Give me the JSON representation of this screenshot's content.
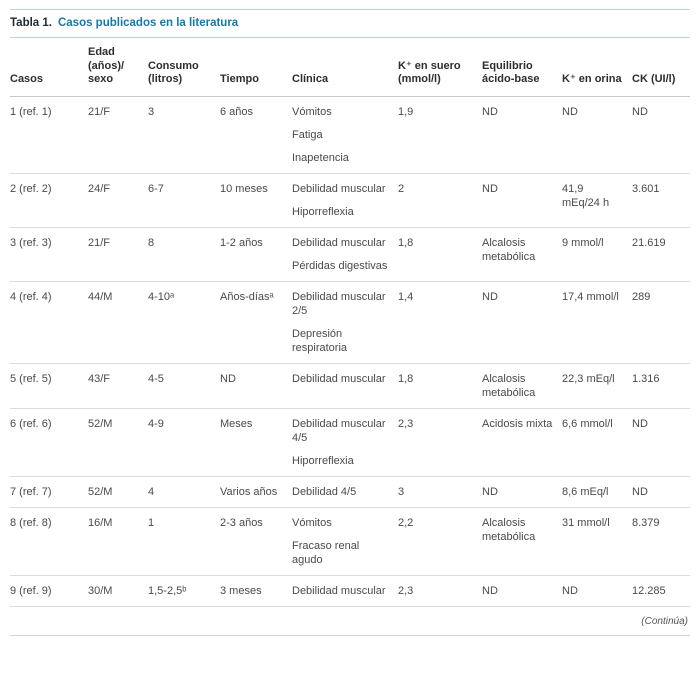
{
  "colors": {
    "accent_teal": "#1579a8",
    "rule_teal": "#b9d7e2",
    "divider_gray": "#dcdcdc",
    "header_text": "#2e2e2e",
    "body_text": "#4a4a4a"
  },
  "title": {
    "label": "Tabla 1.",
    "text": "Casos publicados en la literatura"
  },
  "table": {
    "columns": [
      "Casos",
      "Edad\n(años)/\nsexo",
      "Consumo\n(litros)",
      "Tiempo",
      "Clínica",
      "K⁺ en suero\n(mmol/l)",
      "Equilibrio\nácido-base",
      "K⁺ en orina",
      "CK (UI/l)"
    ],
    "rows": [
      {
        "caso": "1 (ref. 1)",
        "edad": "21/F",
        "consumo": "3",
        "tiempo": "6 años",
        "clinica": [
          "Vómitos",
          "Fatiga",
          "Inapetencia"
        ],
        "k_suero": "1,9",
        "equilibrio": "ND",
        "k_orina": "ND",
        "ck": "ND"
      },
      {
        "caso": "2 (ref. 2)",
        "edad": "24/F",
        "consumo": "6-7",
        "tiempo": "10 meses",
        "clinica": [
          "Debilidad muscular",
          "Hiporreflexia"
        ],
        "k_suero": "2",
        "equilibrio": "ND",
        "k_orina": "41,9 mEq/24 h",
        "ck": "3.601"
      },
      {
        "caso": "3 (ref. 3)",
        "edad": "21/F",
        "consumo": "8",
        "tiempo": "1-2 años",
        "clinica": [
          "Debilidad muscular",
          "Pérdidas digestivas"
        ],
        "k_suero": "1,8",
        "equilibrio": "Alcalosis metabólica",
        "k_orina": "9 mmol/l",
        "ck": "21.619"
      },
      {
        "caso": "4 (ref. 4)",
        "edad": "44/M",
        "consumo": "4-10ᵃ",
        "tiempo": "Años-díasᵃ",
        "clinica": [
          "Debilidad muscular 2/5",
          "Depresión respiratoria"
        ],
        "k_suero": "1,4",
        "equilibrio": "ND",
        "k_orina": "17,4 mmol/l",
        "ck": "289"
      },
      {
        "caso": "5 (ref. 5)",
        "edad": "43/F",
        "consumo": "4-5",
        "tiempo": "ND",
        "clinica": [
          "Debilidad muscular"
        ],
        "k_suero": "1,8",
        "equilibrio": "Alcalosis metabólica",
        "k_orina": "22,3 mEq/l",
        "ck": "1.316"
      },
      {
        "caso": "6 (ref. 6)",
        "edad": "52/M",
        "consumo": "4-9",
        "tiempo": "Meses",
        "clinica": [
          "Debilidad muscular 4/5",
          "Hiporreflexia"
        ],
        "k_suero": "2,3",
        "equilibrio": "Acidosis mixta",
        "k_orina": "6,6 mmol/l",
        "ck": "ND"
      },
      {
        "caso": "7 (ref. 7)",
        "edad": "52/M",
        "consumo": "4",
        "tiempo": "Varios años",
        "clinica": [
          "Debilidad 4/5"
        ],
        "k_suero": "3",
        "equilibrio": "ND",
        "k_orina": "8,6 mEq/l",
        "ck": "ND"
      },
      {
        "caso": "8 (ref. 8)",
        "edad": "16/M",
        "consumo": "1",
        "tiempo": "2-3 años",
        "clinica": [
          "Vómitos",
          "Fracaso renal agudo"
        ],
        "k_suero": "2,2",
        "equilibrio": "Alcalosis metabólica",
        "k_orina": "31 mmol/l",
        "ck": "8.379"
      },
      {
        "caso": "9 (ref. 9)",
        "edad": "30/M",
        "consumo": "1,5-2,5ᵇ",
        "tiempo": "3 meses",
        "clinica": [
          "Debilidad muscular"
        ],
        "k_suero": "2,3",
        "equilibrio": "ND",
        "k_orina": "ND",
        "ck": "12.285"
      }
    ]
  },
  "footer": {
    "continua": "(Continúa)"
  }
}
